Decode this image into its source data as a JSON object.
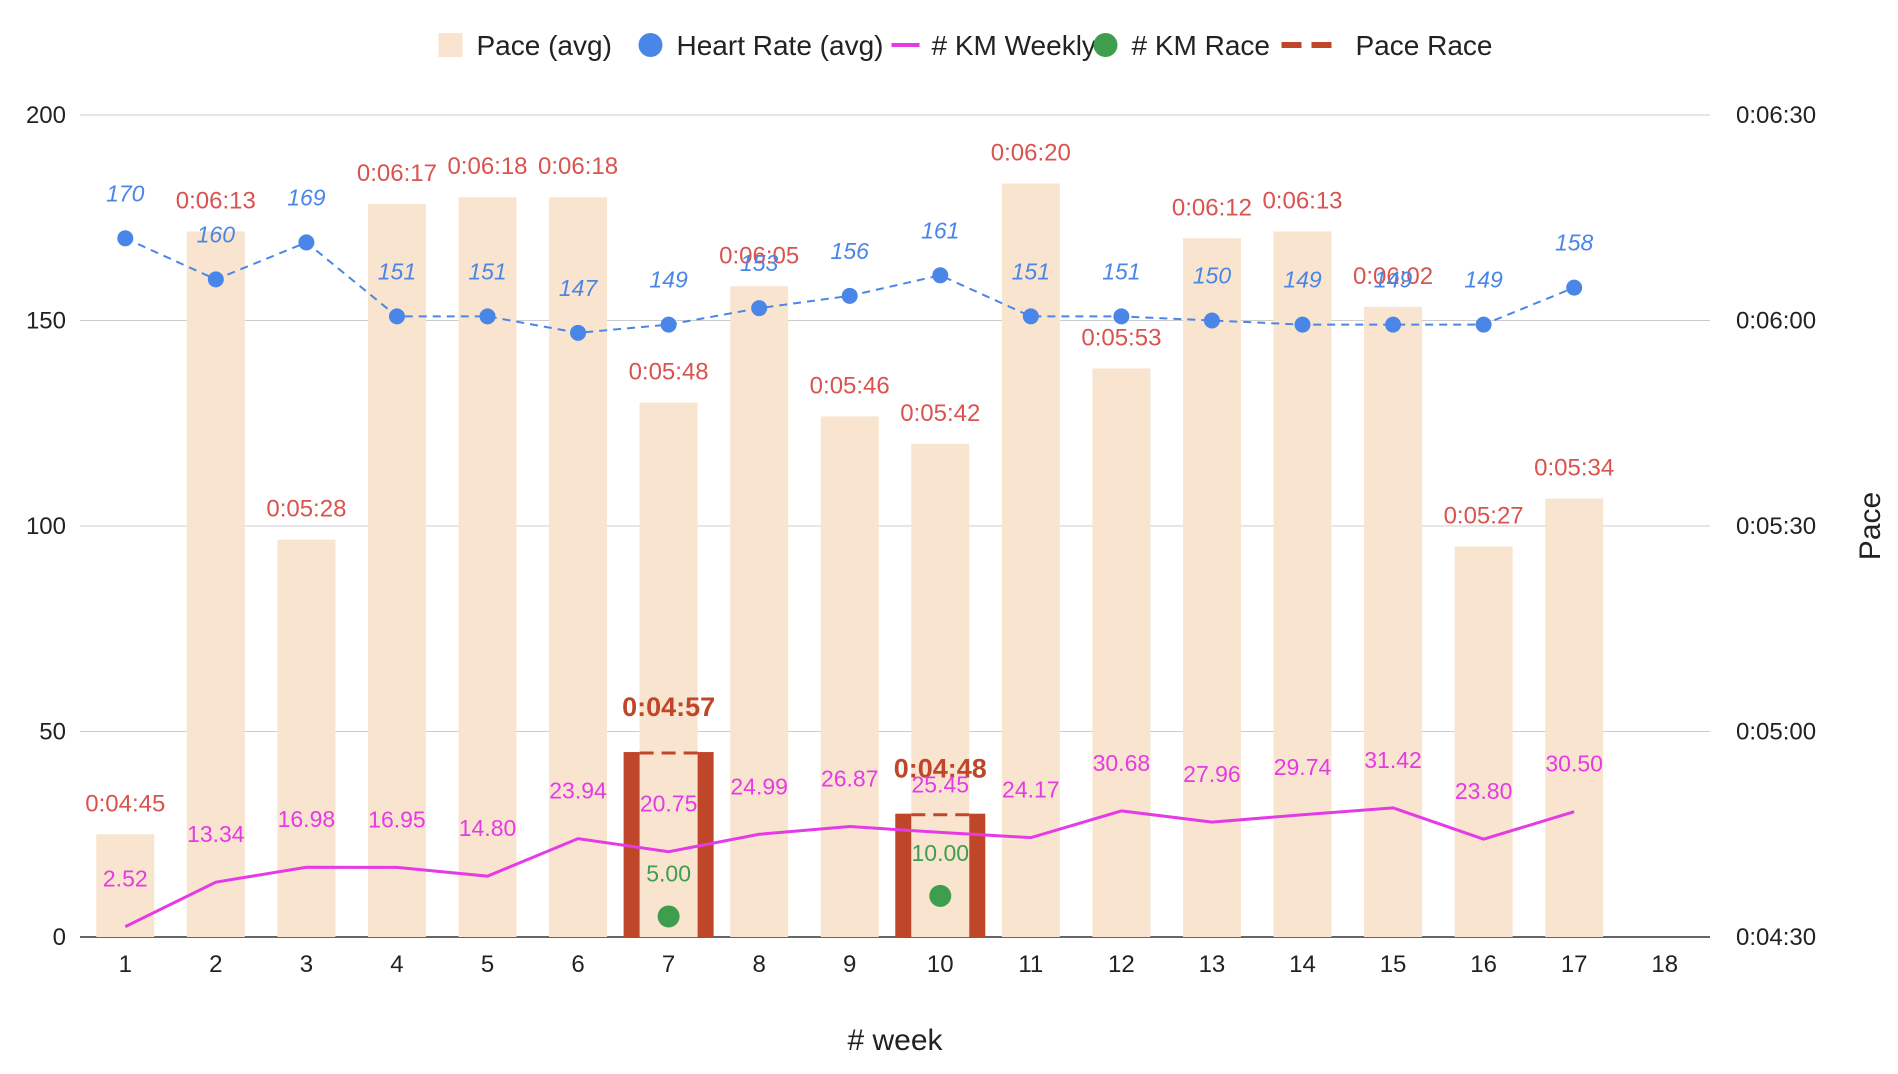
{
  "chart_data": {
    "type": "combo",
    "xlabel": "# week",
    "ylabel_right": "Pace",
    "y_left": {
      "ticks": [
        "0",
        "50",
        "100",
        "150",
        "200"
      ],
      "lim": [
        0,
        200
      ]
    },
    "y_right": {
      "ticks": [
        "0:04:30",
        "0:05:00",
        "0:05:30",
        "0:06:00",
        "0:06:30"
      ],
      "lim_seconds": [
        270,
        390
      ]
    },
    "categories": [
      "1",
      "2",
      "3",
      "4",
      "5",
      "6",
      "7",
      "8",
      "9",
      "10",
      "11",
      "12",
      "13",
      "14",
      "15",
      "16",
      "17",
      "18"
    ],
    "legend": [
      {
        "name": "Pace (avg)",
        "marker": "square",
        "color": "#f9e5cf"
      },
      {
        "name": "Heart Rate (avg)",
        "marker": "circle",
        "color": "#4a86e8"
      },
      {
        "name": "# KM Weekly",
        "marker": "line",
        "color": "#e53be5"
      },
      {
        "name": "# KM Race",
        "marker": "circle",
        "color": "#3f9e4d"
      },
      {
        "name": "Pace Race",
        "marker": "dash",
        "color": "#c0462a"
      }
    ],
    "series": [
      {
        "name": "Pace (avg)",
        "type": "bar",
        "axis": "right",
        "color": "#f9e5cf",
        "values": [
          "0:04:45",
          "0:06:13",
          "0:05:28",
          "0:06:17",
          "0:06:18",
          "0:06:18",
          "0:05:48",
          "0:06:05",
          "0:05:46",
          "0:05:42",
          "0:06:20",
          "0:05:53",
          "0:06:12",
          "0:06:13",
          "0:06:02",
          "0:05:27",
          "0:05:34",
          null
        ]
      },
      {
        "name": "Heart Rate (avg)",
        "type": "line-dashed-points",
        "axis": "left",
        "color": "#4a86e8",
        "values": [
          170,
          160,
          169,
          151,
          151,
          147,
          149,
          153,
          156,
          161,
          151,
          151,
          150,
          149,
          149,
          149,
          158,
          null
        ]
      },
      {
        "name": "# KM Weekly",
        "type": "line",
        "axis": "left",
        "color": "#e53be5",
        "values": [
          "2.52",
          "13.34",
          "16.98",
          "16.95",
          "14.80",
          "23.94",
          "20.75",
          "24.99",
          "26.87",
          "25.45",
          "24.17",
          "30.68",
          "27.96",
          "29.74",
          "31.42",
          "23.80",
          "30.50",
          null
        ]
      },
      {
        "name": "# KM Race",
        "type": "scatter",
        "axis": "left",
        "color": "#3f9e4d",
        "values": [
          null,
          null,
          null,
          null,
          null,
          null,
          "5.00",
          null,
          null,
          "10.00",
          null,
          null,
          null,
          null,
          null,
          null,
          null,
          null
        ]
      },
      {
        "name": "Pace Race",
        "type": "bar-dashed",
        "axis": "right",
        "color": "#c0462a",
        "values": [
          null,
          null,
          null,
          null,
          null,
          null,
          "0:04:57",
          null,
          null,
          "0:04:48",
          null,
          null,
          null,
          null,
          null,
          null,
          null,
          null
        ]
      }
    ]
  }
}
